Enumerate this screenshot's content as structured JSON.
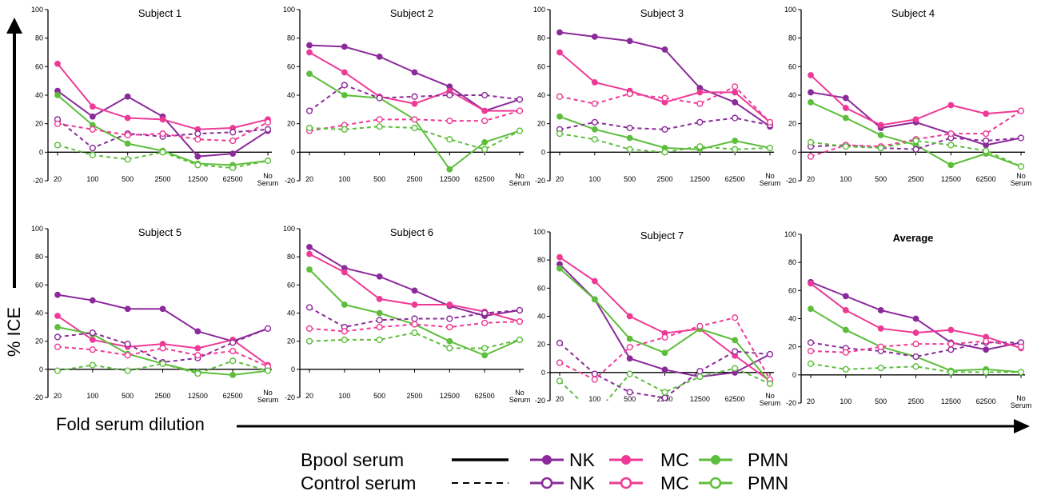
{
  "figure": {
    "ylabel": "% ICE",
    "xlabel": "Fold serum dilution"
  },
  "legend": {
    "bpool_label": "Bpool serum",
    "control_label": "Control serum",
    "nk": "NK",
    "mc": "MC",
    "pmn": "PMN"
  },
  "colors": {
    "NK": "#8B2A9A",
    "MC": "#EE3A96",
    "PMN": "#5DBE3B"
  },
  "chart_data": [
    {
      "type": "line",
      "title": "Subject 1",
      "categories": [
        "20",
        "100",
        "500",
        "2500",
        "12500",
        "62500",
        "No Serum"
      ],
      "ylim": [
        -20,
        100
      ],
      "yticks": [
        -20,
        0,
        20,
        40,
        60,
        80,
        100
      ],
      "series": [
        {
          "name": "NK",
          "serum": "Bpool",
          "values": [
            43,
            25,
            39,
            25,
            -3,
            -1,
            15
          ]
        },
        {
          "name": "MC",
          "serum": "Bpool",
          "values": [
            62,
            32,
            24,
            23,
            16,
            17,
            23
          ]
        },
        {
          "name": "PMN",
          "serum": "Bpool",
          "values": [
            40,
            19,
            6,
            1,
            -8,
            -9,
            -6
          ]
        },
        {
          "name": "NK",
          "serum": "Control",
          "values": [
            23,
            3,
            13,
            11,
            13,
            14,
            16
          ]
        },
        {
          "name": "MC",
          "serum": "Control",
          "values": [
            20,
            16,
            12,
            13,
            9,
            8,
            21
          ]
        },
        {
          "name": "PMN",
          "serum": "Control",
          "values": [
            5,
            -2,
            -5,
            0,
            -9,
            -11,
            -6
          ]
        }
      ]
    },
    {
      "type": "line",
      "title": "Subject 2",
      "categories": [
        "20",
        "100",
        "500",
        "2500",
        "12500",
        "62500",
        "No Serum"
      ],
      "ylim": [
        -20,
        100
      ],
      "yticks": [
        -20,
        0,
        20,
        40,
        60,
        80,
        100
      ],
      "series": [
        {
          "name": "NK",
          "serum": "Bpool",
          "values": [
            75,
            74,
            67,
            56,
            46,
            29,
            37
          ]
        },
        {
          "name": "MC",
          "serum": "Bpool",
          "values": [
            70,
            56,
            39,
            34,
            43,
            29,
            29
          ]
        },
        {
          "name": "PMN",
          "serum": "Bpool",
          "values": [
            55,
            40,
            38,
            23,
            -12,
            7,
            15
          ]
        },
        {
          "name": "NK",
          "serum": "Control",
          "values": [
            29,
            47,
            38,
            39,
            40,
            40,
            37
          ]
        },
        {
          "name": "MC",
          "serum": "Control",
          "values": [
            15,
            19,
            23,
            23,
            22,
            22,
            29
          ]
        },
        {
          "name": "PMN",
          "serum": "Control",
          "values": [
            17,
            16,
            18,
            17,
            9,
            2,
            15
          ]
        }
      ]
    },
    {
      "type": "line",
      "title": "Subject 3",
      "categories": [
        "20",
        "100",
        "500",
        "2500",
        "12500",
        "62500",
        "No Serum"
      ],
      "ylim": [
        -20,
        100
      ],
      "yticks": [
        -20,
        0,
        20,
        40,
        60,
        80,
        100
      ],
      "series": [
        {
          "name": "NK",
          "serum": "Bpool",
          "values": [
            84,
            81,
            78,
            72,
            45,
            35,
            18
          ]
        },
        {
          "name": "MC",
          "serum": "Bpool",
          "values": [
            70,
            49,
            43,
            35,
            42,
            42,
            21
          ]
        },
        {
          "name": "PMN",
          "serum": "Bpool",
          "values": [
            25,
            16,
            10,
            3,
            2,
            8,
            3
          ]
        },
        {
          "name": "NK",
          "serum": "Control",
          "values": [
            16,
            21,
            17,
            16,
            21,
            24,
            19
          ]
        },
        {
          "name": "MC",
          "serum": "Control",
          "values": [
            39,
            34,
            41,
            38,
            34,
            46,
            21
          ]
        },
        {
          "name": "PMN",
          "serum": "Control",
          "values": [
            13,
            9,
            2,
            0,
            4,
            2,
            3
          ]
        }
      ]
    },
    {
      "type": "line",
      "title": "Subject 4",
      "categories": [
        "20",
        "100",
        "500",
        "2500",
        "12500",
        "62500",
        "No Serum"
      ],
      "ylim": [
        -20,
        100
      ],
      "yticks": [
        -20,
        0,
        20,
        40,
        60,
        80,
        100
      ],
      "series": [
        {
          "name": "NK",
          "serum": "Bpool",
          "values": [
            42,
            38,
            17,
            21,
            13,
            5,
            10
          ]
        },
        {
          "name": "MC",
          "serum": "Bpool",
          "values": [
            54,
            31,
            19,
            23,
            33,
            27,
            29
          ]
        },
        {
          "name": "PMN",
          "serum": "Bpool",
          "values": [
            35,
            24,
            12,
            5,
            -9,
            -1,
            -10
          ]
        },
        {
          "name": "NK",
          "serum": "Control",
          "values": [
            4,
            5,
            3,
            2,
            10,
            8,
            10
          ]
        },
        {
          "name": "MC",
          "serum": "Control",
          "values": [
            -3,
            5,
            4,
            9,
            13,
            13,
            29
          ]
        },
        {
          "name": "PMN",
          "serum": "Control",
          "values": [
            7,
            4,
            3,
            8,
            5,
            1,
            -10
          ]
        }
      ]
    },
    {
      "type": "line",
      "title": "Subject 5",
      "categories": [
        "20",
        "100",
        "500",
        "2500",
        "12500",
        "62500",
        "No Serum"
      ],
      "ylim": [
        -20,
        100
      ],
      "yticks": [
        -20,
        0,
        20,
        40,
        60,
        80,
        100
      ],
      "series": [
        {
          "name": "NK",
          "serum": "Bpool",
          "values": [
            53,
            49,
            43,
            43,
            27,
            20,
            29
          ]
        },
        {
          "name": "MC",
          "serum": "Bpool",
          "values": [
            38,
            21,
            16,
            18,
            15,
            21,
            3
          ]
        },
        {
          "name": "PMN",
          "serum": "Bpool",
          "values": [
            30,
            25,
            11,
            4,
            -2,
            -4,
            -1
          ]
        },
        {
          "name": "NK",
          "serum": "Control",
          "values": [
            23,
            26,
            18,
            5,
            8,
            19,
            29
          ]
        },
        {
          "name": "MC",
          "serum": "Control",
          "values": [
            16,
            14,
            10,
            15,
            10,
            13,
            2
          ]
        },
        {
          "name": "PMN",
          "serum": "Control",
          "values": [
            -1,
            3,
            -1,
            4,
            -3,
            6,
            -1
          ]
        }
      ]
    },
    {
      "type": "line",
      "title": "Subject 6",
      "categories": [
        "20",
        "100",
        "500",
        "2500",
        "12500",
        "62500",
        "No Serum"
      ],
      "ylim": [
        -20,
        100
      ],
      "yticks": [
        -20,
        0,
        20,
        40,
        60,
        80,
        100
      ],
      "series": [
        {
          "name": "NK",
          "serum": "Bpool",
          "values": [
            87,
            72,
            66,
            56,
            45,
            38,
            42
          ]
        },
        {
          "name": "MC",
          "serum": "Bpool",
          "values": [
            82,
            69,
            50,
            46,
            46,
            41,
            34
          ]
        },
        {
          "name": "PMN",
          "serum": "Bpool",
          "values": [
            71,
            46,
            40,
            32,
            20,
            10,
            21
          ]
        },
        {
          "name": "NK",
          "serum": "Control",
          "values": [
            44,
            30,
            35,
            36,
            36,
            40,
            42
          ]
        },
        {
          "name": "MC",
          "serum": "Control",
          "values": [
            29,
            27,
            30,
            32,
            30,
            33,
            34
          ]
        },
        {
          "name": "PMN",
          "serum": "Control",
          "values": [
            20,
            21,
            21,
            26,
            15,
            15,
            21
          ]
        }
      ]
    },
    {
      "type": "line",
      "title": "Subject 7",
      "categories": [
        "20",
        "100",
        "500",
        "2500",
        "12500",
        "62500",
        "No Serum"
      ],
      "ylim": [
        -20,
        100
      ],
      "yticks": [
        -20,
        0,
        20,
        40,
        60,
        80,
        100
      ],
      "series": [
        {
          "name": "NK",
          "serum": "Bpool",
          "values": [
            77,
            52,
            10,
            2,
            -3,
            0,
            13
          ]
        },
        {
          "name": "MC",
          "serum": "Bpool",
          "values": [
            82,
            65,
            40,
            28,
            31,
            12,
            -6
          ]
        },
        {
          "name": "PMN",
          "serum": "Bpool",
          "values": [
            74,
            52,
            24,
            14,
            31,
            23,
            -7
          ]
        },
        {
          "name": "NK",
          "serum": "Control",
          "values": [
            21,
            -1,
            -14,
            -18,
            1,
            15,
            13
          ]
        },
        {
          "name": "MC",
          "serum": "Control",
          "values": [
            7,
            -5,
            18,
            25,
            33,
            39,
            -5
          ]
        },
        {
          "name": "PMN",
          "serum": "Control",
          "values": [
            -6,
            -30,
            -1,
            -14,
            -3,
            3,
            -8
          ]
        }
      ]
    },
    {
      "type": "line",
      "title": "Average",
      "categories": [
        "20",
        "100",
        "500",
        "2500",
        "12500",
        "62500",
        "No Serum"
      ],
      "ylim": [
        -20,
        100
      ],
      "yticks": [
        -20,
        0,
        20,
        40,
        60,
        80,
        100
      ],
      "series": [
        {
          "name": "NK",
          "serum": "Bpool",
          "values": [
            66,
            56,
            46,
            40,
            23,
            18,
            23
          ]
        },
        {
          "name": "MC",
          "serum": "Bpool",
          "values": [
            65,
            46,
            33,
            30,
            32,
            27,
            19
          ]
        },
        {
          "name": "PMN",
          "serum": "Bpool",
          "values": [
            47,
            32,
            20,
            13,
            3,
            4,
            2
          ]
        },
        {
          "name": "NK",
          "serum": "Control",
          "values": [
            23,
            19,
            17,
            13,
            18,
            23,
            23
          ]
        },
        {
          "name": "MC",
          "serum": "Control",
          "values": [
            17,
            16,
            20,
            22,
            22,
            24,
            20
          ]
        },
        {
          "name": "PMN",
          "serum": "Control",
          "values": [
            8,
            4,
            5,
            6,
            2,
            2,
            2
          ]
        }
      ]
    }
  ]
}
